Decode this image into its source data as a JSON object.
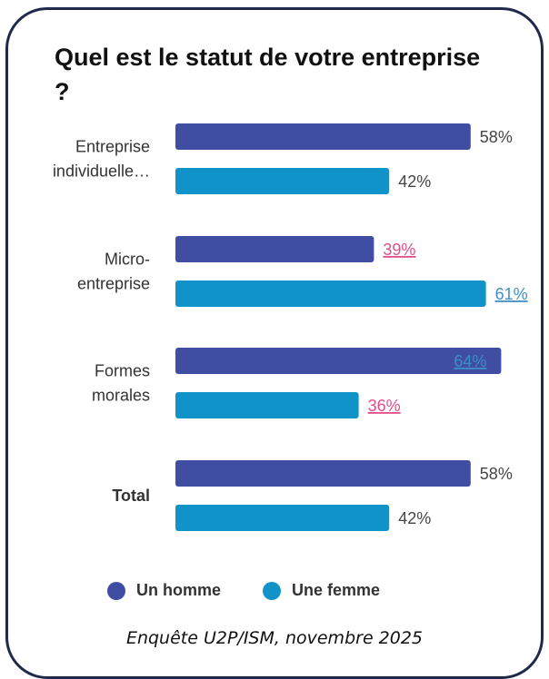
{
  "title": "Quel est le statut de votre entreprise ?",
  "source": "Enquête U2P/ISM, novembre 2025",
  "colors": {
    "homme": "#3f4ea3",
    "femme": "#0f93c9",
    "link_pink": "#e24d8a",
    "link_blue": "#3f8ec7"
  },
  "legend": [
    {
      "label": "Un homme",
      "color": "#3f4ea3"
    },
    {
      "label": "Une femme",
      "color": "#0f93c9"
    }
  ],
  "chart_data": {
    "type": "bar",
    "orientation": "horizontal",
    "categories": [
      [
        "Entreprise",
        "individuelle…"
      ],
      [
        "Micro-",
        "entreprise"
      ],
      [
        "Formes",
        "morales"
      ],
      [
        "Total"
      ]
    ],
    "series": [
      {
        "name": "Un homme",
        "values": [
          58,
          39,
          64,
          58
        ],
        "labels": [
          "58%",
          "39%",
          "64%",
          "58%"
        ],
        "label_style": [
          "plain",
          "underline-pink",
          "underline-blue-inside",
          "plain"
        ]
      },
      {
        "name": "Une femme",
        "values": [
          42,
          61,
          36,
          42
        ],
        "labels": [
          "42%",
          "61%",
          "36%",
          "42%"
        ],
        "label_style": [
          "plain",
          "underline-blue",
          "underline-pink",
          "plain"
        ]
      }
    ],
    "category_bold": [
      false,
      false,
      false,
      true
    ],
    "xlim": [
      0,
      100
    ],
    "grid": false,
    "legend_position": "bottom"
  }
}
